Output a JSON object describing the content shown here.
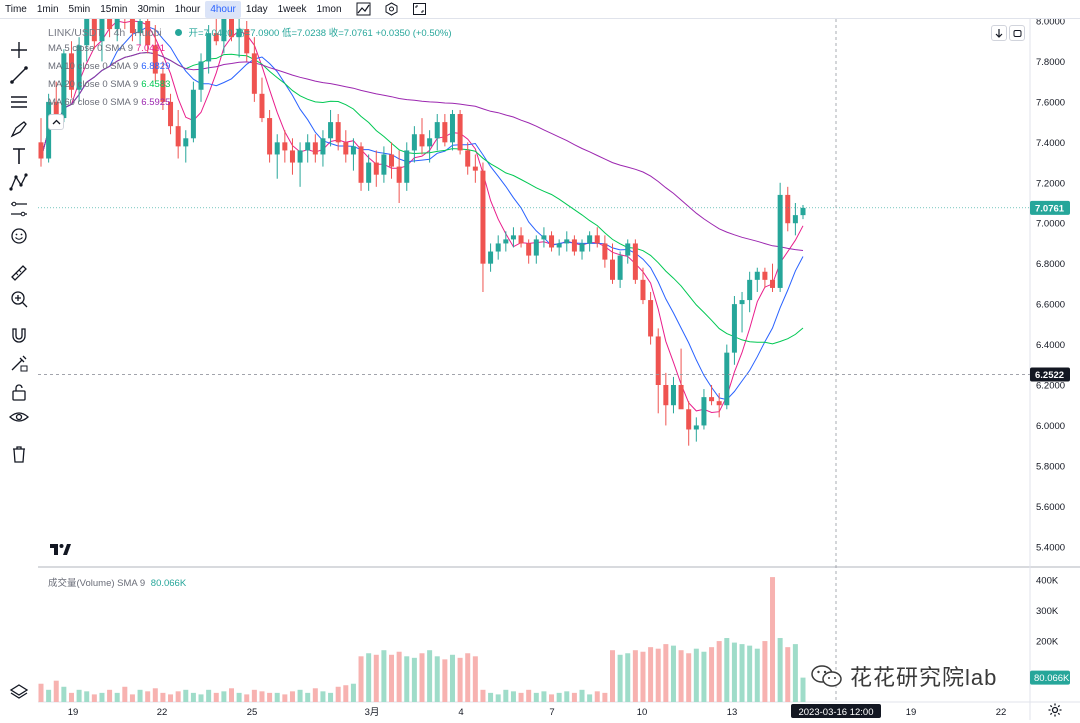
{
  "toolbar_top": {
    "timeframes": [
      "Time",
      "1min",
      "5min",
      "15min",
      "30min",
      "1hour",
      "4hour",
      "1day",
      "1week",
      "1mon"
    ],
    "active_timeframe": "4hour",
    "icons": [
      "chart-type-icon",
      "indicators-icon",
      "fullscreen-icon"
    ]
  },
  "left_tools": [
    "crosshair-icon",
    "trend-line-icon",
    "horizontal-lines-icon",
    "brush-icon",
    "text-icon",
    "pattern-icon",
    "prediction-icon",
    "smiley-icon",
    "ruler-icon",
    "zoom-in-icon",
    "magnet-icon",
    "lock-drawing-icon",
    "unlock-icon",
    "eye-icon",
    "trash-icon"
  ],
  "header": {
    "symbol": "LINK/USDT",
    "interval": "4h",
    "exchange": "Huobi",
    "ohlc": "开=7.0420 高=7.0900 低=7.0238 收=7.0761 +0.0350 (+0.50%)"
  },
  "ma_legend": [
    {
      "label": "MA 5 close 0 SMA 9",
      "value": "7.0431",
      "color": "#e91e8c"
    },
    {
      "label": "MA 10 close 0 SMA 9",
      "value": "6.8829",
      "color": "#2962ff"
    },
    {
      "label": "MA 20 close 0 SMA 9",
      "value": "6.4583",
      "color": "#00c853"
    },
    {
      "label": "MA 60 close 0 SMA 9",
      "value": "6.5925",
      "color": "#9c27b0"
    }
  ],
  "price_axis": [
    "8.0000",
    "7.8000",
    "7.6000",
    "7.4000",
    "7.2000",
    "7.0000",
    "6.8000",
    "6.6000",
    "6.4000",
    "6.2000",
    "6.0000",
    "5.8000",
    "5.6000",
    "5.4000"
  ],
  "price_labels": {
    "last_price": "7.0761",
    "crosshair_price": "6.2522"
  },
  "volume": {
    "legend": "成交量(Volume) SMA 9",
    "value": "80.066K",
    "axis": [
      "400K",
      "300K",
      "200K"
    ],
    "last_label": "80.066K"
  },
  "time_axis": [
    "19",
    "22",
    "25",
    "3月",
    "4",
    "7",
    "10",
    "13",
    "19",
    "22"
  ],
  "crosshair_time": "2023-03-16  12:00",
  "watermark": "花花研究院lab",
  "colors": {
    "up": "#26a69a",
    "down": "#ef5350",
    "up_vol": "#9fdcc9",
    "down_vol": "#f7b2b0"
  },
  "chart_data": {
    "type": "candlestick",
    "candles_ohlc": [
      [
        7.4,
        7.52,
        7.28,
        7.32
      ],
      [
        7.32,
        7.64,
        7.3,
        7.6
      ],
      [
        7.6,
        7.7,
        7.48,
        7.52
      ],
      [
        7.52,
        7.86,
        7.5,
        7.84
      ],
      [
        7.84,
        7.9,
        7.62,
        7.66
      ],
      [
        7.66,
        7.92,
        7.6,
        7.88
      ],
      [
        7.88,
        8.1,
        7.8,
        8.06
      ],
      [
        8.06,
        8.1,
        7.86,
        7.9
      ],
      [
        7.9,
        8.1,
        7.8,
        8.02
      ],
      [
        8.02,
        8.12,
        7.92,
        7.96
      ],
      [
        7.96,
        8.1,
        7.9,
        8.06
      ],
      [
        8.06,
        8.14,
        7.96,
        8.02
      ],
      [
        8.02,
        8.1,
        7.9,
        7.94
      ],
      [
        7.94,
        8.06,
        7.88,
        8.0
      ],
      [
        8.0,
        8.14,
        7.84,
        7.88
      ],
      [
        7.88,
        7.98,
        7.7,
        7.74
      ],
      [
        7.74,
        7.8,
        7.56,
        7.6
      ],
      [
        7.6,
        7.64,
        7.44,
        7.48
      ],
      [
        7.48,
        7.56,
        7.32,
        7.38
      ],
      [
        7.38,
        7.46,
        7.3,
        7.42
      ],
      [
        7.42,
        7.7,
        7.4,
        7.66
      ],
      [
        7.66,
        7.84,
        7.6,
        7.8
      ],
      [
        7.8,
        7.98,
        7.74,
        7.94
      ],
      [
        7.94,
        8.06,
        7.88,
        7.9
      ],
      [
        7.9,
        8.08,
        7.84,
        8.04
      ],
      [
        8.04,
        8.08,
        7.9,
        7.92
      ],
      [
        7.92,
        8.02,
        7.82,
        7.96
      ],
      [
        7.96,
        8.0,
        7.8,
        7.84
      ],
      [
        7.84,
        7.92,
        7.6,
        7.64
      ],
      [
        7.64,
        7.72,
        7.5,
        7.52
      ],
      [
        7.52,
        7.56,
        7.3,
        7.34
      ],
      [
        7.34,
        7.44,
        7.22,
        7.4
      ],
      [
        7.4,
        7.46,
        7.3,
        7.36
      ],
      [
        7.36,
        7.42,
        7.24,
        7.3
      ],
      [
        7.3,
        7.4,
        7.18,
        7.36
      ],
      [
        7.36,
        7.44,
        7.3,
        7.4
      ],
      [
        7.4,
        7.44,
        7.3,
        7.34
      ],
      [
        7.34,
        7.46,
        7.28,
        7.42
      ],
      [
        7.42,
        7.56,
        7.38,
        7.5
      ],
      [
        7.5,
        7.54,
        7.36,
        7.4
      ],
      [
        7.4,
        7.46,
        7.3,
        7.34
      ],
      [
        7.34,
        7.42,
        7.26,
        7.38
      ],
      [
        7.38,
        7.4,
        7.16,
        7.2
      ],
      [
        7.2,
        7.34,
        7.16,
        7.3
      ],
      [
        7.3,
        7.36,
        7.18,
        7.24
      ],
      [
        7.24,
        7.38,
        7.2,
        7.34
      ],
      [
        7.34,
        7.4,
        7.22,
        7.28
      ],
      [
        7.28,
        7.36,
        7.1,
        7.2
      ],
      [
        7.2,
        7.4,
        7.16,
        7.36
      ],
      [
        7.36,
        7.48,
        7.3,
        7.44
      ],
      [
        7.44,
        7.52,
        7.34,
        7.38
      ],
      [
        7.38,
        7.46,
        7.3,
        7.42
      ],
      [
        7.42,
        7.54,
        7.36,
        7.5
      ],
      [
        7.5,
        7.54,
        7.38,
        7.4
      ],
      [
        7.4,
        7.56,
        7.36,
        7.54
      ],
      [
        7.54,
        7.56,
        7.34,
        7.36
      ],
      [
        7.36,
        7.4,
        7.24,
        7.28
      ],
      [
        7.28,
        7.34,
        7.2,
        7.26
      ],
      [
        7.26,
        7.3,
        6.66,
        6.8
      ],
      [
        6.8,
        6.9,
        6.76,
        6.86
      ],
      [
        6.86,
        6.94,
        6.82,
        6.9
      ],
      [
        6.9,
        6.96,
        6.86,
        6.92
      ],
      [
        6.92,
        6.98,
        6.88,
        6.94
      ],
      [
        6.94,
        6.98,
        6.88,
        6.9
      ],
      [
        6.9,
        6.92,
        6.8,
        6.84
      ],
      [
        6.84,
        6.94,
        6.8,
        6.92
      ],
      [
        6.92,
        6.98,
        6.88,
        6.94
      ],
      [
        6.94,
        6.96,
        6.86,
        6.88
      ],
      [
        6.88,
        6.92,
        6.84,
        6.9
      ],
      [
        6.9,
        6.96,
        6.86,
        6.92
      ],
      [
        6.92,
        6.94,
        6.84,
        6.86
      ],
      [
        6.86,
        6.92,
        6.82,
        6.9
      ],
      [
        6.9,
        6.96,
        6.86,
        6.94
      ],
      [
        6.94,
        6.98,
        6.88,
        6.9
      ],
      [
        6.9,
        6.94,
        6.78,
        6.82
      ],
      [
        6.82,
        6.9,
        6.7,
        6.72
      ],
      [
        6.72,
        6.86,
        6.68,
        6.84
      ],
      [
        6.84,
        6.92,
        6.8,
        6.9
      ],
      [
        6.9,
        6.92,
        6.7,
        6.72
      ],
      [
        6.72,
        6.78,
        6.6,
        6.62
      ],
      [
        6.62,
        6.66,
        6.4,
        6.44
      ],
      [
        6.44,
        6.48,
        6.06,
        6.2
      ],
      [
        6.2,
        6.26,
        6.0,
        6.1
      ],
      [
        6.1,
        6.24,
        6.06,
        6.2
      ],
      [
        6.2,
        6.38,
        6.18,
        6.08
      ],
      [
        6.08,
        6.12,
        5.9,
        5.98
      ],
      [
        5.98,
        6.04,
        5.92,
        6.0
      ],
      [
        6.0,
        6.18,
        5.98,
        6.14
      ],
      [
        6.14,
        6.2,
        6.1,
        6.12
      ],
      [
        6.12,
        6.16,
        6.04,
        6.1
      ],
      [
        6.1,
        6.4,
        6.08,
        6.36
      ],
      [
        6.36,
        6.64,
        6.3,
        6.6
      ],
      [
        6.6,
        6.66,
        6.46,
        6.62
      ],
      [
        6.62,
        6.76,
        6.56,
        6.72
      ],
      [
        6.72,
        6.78,
        6.66,
        6.76
      ],
      [
        6.76,
        6.78,
        6.68,
        6.72
      ],
      [
        6.72,
        6.8,
        6.66,
        6.68
      ],
      [
        6.68,
        7.2,
        6.66,
        7.14
      ],
      [
        7.14,
        7.18,
        6.96,
        7.0
      ],
      [
        7.0,
        7.1,
        6.94,
        7.04
      ],
      [
        7.04,
        7.09,
        7.02,
        7.0761
      ]
    ],
    "volumes_k": [
      60,
      40,
      70,
      50,
      30,
      40,
      35,
      25,
      30,
      40,
      30,
      50,
      25,
      40,
      35,
      45,
      30,
      25,
      35,
      40,
      30,
      25,
      40,
      30,
      35,
      45,
      30,
      25,
      40,
      35,
      30,
      30,
      25,
      35,
      40,
      30,
      45,
      35,
      30,
      50,
      55,
      60,
      150,
      160,
      155,
      170,
      155,
      165,
      150,
      145,
      160,
      170,
      150,
      140,
      155,
      145,
      160,
      150,
      40,
      30,
      25,
      40,
      35,
      30,
      40,
      30,
      35,
      25,
      30,
      35,
      30,
      40,
      25,
      35,
      30,
      170,
      155,
      160,
      170,
      165,
      180,
      175,
      190,
      185,
      170,
      160,
      175,
      165,
      180,
      200,
      210,
      195,
      190,
      185,
      175,
      200,
      410,
      210,
      180,
      190,
      80
    ]
  }
}
